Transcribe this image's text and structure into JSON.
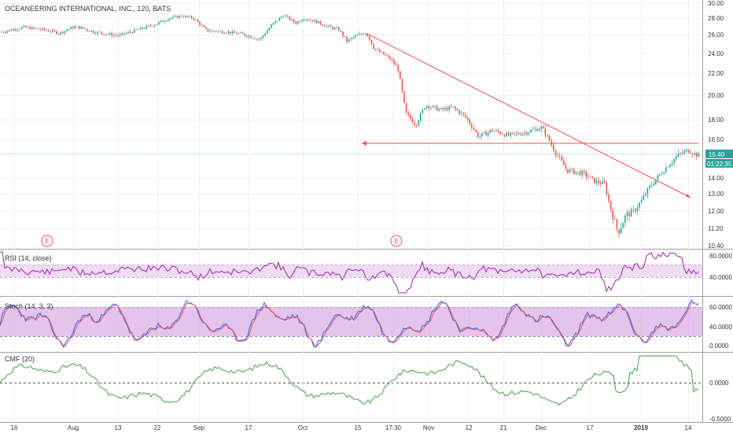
{
  "header": {
    "title": "OCEANEERING INTERNATIONAL, INC., 120, BATS"
  },
  "price_panel": {
    "y_ticks": [
      "30.00",
      "28.00",
      "26.00",
      "24.00",
      "22.00",
      "20.00",
      "18.00",
      "16.50",
      "14.00",
      "13.00",
      "12.00",
      "11.20",
      "10.40"
    ],
    "tick_values": [
      30,
      28,
      26,
      24,
      22,
      20,
      18,
      16.5,
      14,
      13,
      12,
      11.2,
      10.4
    ],
    "last_price": "15.40",
    "countdown": "01:22:35",
    "earnings_marker_label": "E"
  },
  "rsi_panel": {
    "label": "RSI (14, close)",
    "ticks": [
      "80.0000",
      "40.0000"
    ]
  },
  "stoch_panel": {
    "label": "Stoch (14, 3, 3)",
    "ticks": [
      "60.0000",
      "40.0000",
      "0.0000"
    ]
  },
  "cmf_panel": {
    "label": "CMF (20)",
    "ticks": [
      "0.0000",
      "-0.5000"
    ]
  },
  "x_axis": {
    "labels": [
      "16",
      "Aug",
      "13",
      "22",
      "Sep",
      "17",
      "Oct",
      "15",
      "17:30",
      "Nov",
      "12",
      "21",
      "Dec",
      "17",
      "2019",
      "14"
    ]
  },
  "colors": {
    "up": "#26a69a",
    "down": "#ef5350",
    "trendline": "#ef5350",
    "rsi_line": "#9c27b0",
    "rsi_band": "#e1bee7",
    "stoch_band": "#ce93d8",
    "stoch_k": "#2962ff",
    "stoch_d": "#ef5350",
    "cmf_line": "#43a047",
    "price_badge": "#26a69a"
  },
  "chart_data": {
    "type": "line",
    "title": "OCEANEERING INTERNATIONAL, INC., 120, BATS",
    "x": [
      "16",
      "Aug",
      "13",
      "22",
      "Sep",
      "17",
      "Oct",
      "15",
      "Nov",
      "12",
      "21",
      "Dec",
      "17",
      "2019",
      "14"
    ],
    "series": [
      {
        "values": [
          26.5,
          27.2,
          26.4,
          26.8,
          28.2,
          26.5,
          28.0,
          26.2,
          19.0,
          17.0,
          16.9,
          16.2,
          12.0,
          14.2,
          15.6
        ]
      }
    ],
    "ylim": [
      10.4,
      30.0
    ],
    "trendlines": [
      {
        "from": [
          "15",
          26.2
        ],
        "to": [
          "2019",
          13.2
        ],
        "style": "arrow"
      },
      {
        "from": [
          "2019",
          15.9
        ],
        "to": [
          "15",
          15.9
        ],
        "style": "arrow-left"
      }
    ]
  }
}
